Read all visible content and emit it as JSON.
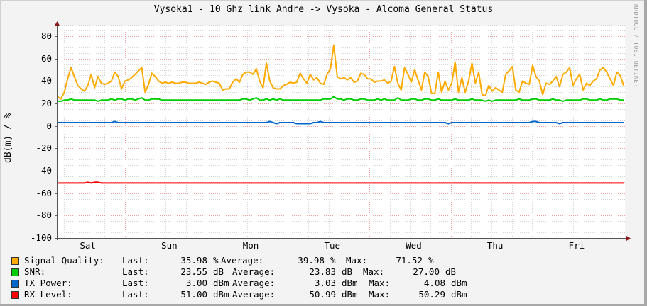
{
  "title": "Vysoka1 - 10 Ghz link Andre -> Vysoka - Alcoma General Status",
  "watermark": "RRDTOOL / TOBI OETIKER",
  "yaxis_title": "dB(m) / %",
  "chart_data": {
    "type": "line",
    "title": "Vysoka1 - 10 Ghz link Andre -> Vysoka - Alcoma General Status",
    "xlabel": "",
    "ylabel": "dB(m) / %",
    "ylim": [
      -100,
      90
    ],
    "yticks": [
      80,
      60,
      40,
      20,
      0,
      -20,
      -40,
      -60,
      -80,
      -100
    ],
    "ytick_labels": [
      "80",
      "60",
      "40",
      "20",
      "0",
      "-20",
      "-40",
      "-60",
      "-80",
      "-100"
    ],
    "xtick_labels": [
      "Sat",
      "Sun",
      "Mon",
      "Tue",
      "Wed",
      "Thu",
      "Fri"
    ],
    "grid": true,
    "legend_position": "bottom",
    "x": [
      0,
      1,
      2,
      3,
      4,
      5,
      6,
      7,
      8,
      9,
      10,
      11,
      12,
      13,
      14,
      15,
      16,
      17,
      18,
      19,
      20,
      21,
      22,
      23,
      24,
      25,
      26,
      27,
      28,
      29,
      30,
      31,
      32,
      33,
      34,
      35,
      36,
      37,
      38,
      39,
      40,
      41,
      42,
      43,
      44,
      45,
      46,
      47,
      48,
      49,
      50,
      51,
      52,
      53,
      54,
      55,
      56,
      57,
      58,
      59,
      60,
      61,
      62,
      63,
      64,
      65,
      66,
      67,
      68,
      69,
      70,
      71,
      72,
      73,
      74,
      75,
      76,
      77,
      78,
      79,
      80,
      81,
      82,
      83,
      84,
      85,
      86,
      87,
      88,
      89,
      90,
      91,
      92,
      93,
      94,
      95,
      96,
      97,
      98,
      99,
      100,
      101,
      102,
      103,
      104,
      105,
      106,
      107,
      108,
      109,
      110,
      111,
      112,
      113,
      114,
      115,
      116,
      117,
      118,
      119,
      120,
      121,
      122,
      123,
      124,
      125,
      126,
      127,
      128,
      129,
      130,
      131,
      132,
      133,
      134,
      135,
      136,
      137,
      138,
      139,
      140,
      141,
      142,
      143,
      144,
      145,
      146,
      147,
      148,
      149,
      150,
      151,
      152,
      153,
      154,
      155,
      156,
      157,
      158,
      159,
      160,
      161,
      162,
      163,
      164,
      165,
      166,
      167,
      168
    ],
    "series": [
      {
        "name": "Signal Quality",
        "color": "#ffaa00",
        "unit": "%",
        "last": "35.98",
        "average": "39.98",
        "max": "71.52",
        "values": [
          26,
          24,
          30,
          42,
          52,
          44,
          36,
          33,
          31,
          36,
          46,
          34,
          44,
          38,
          37,
          38,
          40,
          48,
          44,
          33,
          40,
          41,
          43,
          46,
          49,
          52,
          30,
          37,
          47,
          44,
          40,
          38,
          39,
          38,
          39,
          38,
          38,
          39,
          39,
          38,
          38,
          38,
          39,
          38,
          37,
          39,
          40,
          39,
          38,
          32,
          33,
          33,
          39,
          42,
          39,
          46,
          48,
          48,
          46,
          51,
          40,
          34,
          56,
          40,
          34,
          33,
          33,
          36,
          37,
          39,
          38,
          39,
          47,
          42,
          38,
          46,
          41,
          43,
          38,
          37,
          46,
          51,
          72,
          44,
          42,
          43,
          41,
          43,
          39,
          40,
          47,
          46,
          42,
          42,
          39,
          40,
          40,
          41,
          38,
          40,
          53,
          38,
          32,
          52,
          46,
          39,
          50,
          41,
          32,
          48,
          44,
          29,
          29,
          48,
          30,
          40,
          32,
          38,
          57,
          30,
          43,
          30,
          40,
          56,
          38,
          48,
          28,
          27,
          36,
          31,
          34,
          32,
          30,
          46,
          49,
          53,
          32,
          30,
          40,
          38,
          37,
          54,
          44,
          40,
          28,
          38,
          37,
          40,
          44,
          35,
          46,
          48,
          52,
          36,
          42,
          46,
          32,
          38,
          36,
          40,
          42,
          50,
          52,
          48,
          42,
          36,
          48,
          45,
          36
        ]
      },
      {
        "name": "SNR",
        "color": "#00cc00",
        "unit": "dB",
        "last": "23.55",
        "average": "23.83",
        "max": "27.00",
        "values": [
          22,
          22,
          23,
          23,
          24,
          23,
          23,
          23,
          23,
          23,
          23,
          23,
          22,
          23,
          23,
          23,
          24,
          23,
          24,
          24,
          23,
          24,
          24,
          23,
          24,
          25,
          23,
          23,
          24,
          24,
          24,
          23,
          23,
          23,
          23,
          23,
          23,
          23,
          23,
          23,
          23,
          23,
          23,
          23,
          23,
          23,
          23,
          23,
          23,
          23,
          23,
          23,
          23,
          23,
          23,
          24,
          24,
          23,
          24,
          25,
          23,
          23,
          24,
          23,
          24,
          23,
          24,
          23,
          23,
          23,
          23,
          23,
          23,
          23,
          23,
          23,
          23,
          23,
          23,
          24,
          24,
          24,
          26,
          24,
          24,
          23,
          24,
          24,
          23,
          23,
          24,
          24,
          23,
          23,
          23,
          24,
          23,
          24,
          23,
          23,
          23,
          25,
          23,
          23,
          23,
          24,
          24,
          23,
          23,
          24,
          24,
          23,
          23,
          24,
          23,
          23,
          23,
          23,
          24,
          23,
          23,
          23,
          23,
          24,
          23,
          23,
          23,
          22,
          23,
          22,
          23,
          23,
          23,
          23,
          23,
          23,
          23,
          24,
          23,
          23,
          23,
          24,
          24,
          23,
          23,
          23,
          23,
          24,
          23,
          23,
          22,
          23,
          23,
          23,
          23,
          23,
          24,
          24,
          23,
          23,
          23,
          24,
          23,
          23,
          24,
          24,
          24,
          23,
          23
        ]
      },
      {
        "name": "TX Power",
        "color": "#0066cc",
        "unit": "dBm",
        "last": "3.00",
        "average": "3.03",
        "max": "4.08",
        "values": [
          3,
          3,
          3,
          3,
          3,
          3,
          3,
          3,
          3,
          3,
          3,
          3,
          3,
          3,
          3,
          3,
          3,
          4,
          3,
          3,
          3,
          3,
          3,
          3,
          3,
          3,
          3,
          3,
          3,
          3,
          3,
          3,
          3,
          3,
          3,
          3,
          3,
          3,
          3,
          3,
          3,
          3,
          3,
          3,
          3,
          3,
          3,
          3,
          3,
          3,
          3,
          3,
          3,
          3,
          3,
          3,
          3,
          3,
          3,
          3,
          3,
          3,
          3,
          4,
          3,
          2,
          3,
          3,
          3,
          3,
          3,
          2,
          2,
          2,
          2,
          2,
          3,
          3,
          4,
          3,
          3,
          3,
          3,
          3,
          3,
          3,
          3,
          3,
          3,
          3,
          3,
          3,
          3,
          3,
          3,
          3,
          3,
          3,
          3,
          3,
          3,
          3,
          3,
          3,
          3,
          3,
          3,
          3,
          3,
          3,
          3,
          3,
          3,
          3,
          3,
          3,
          2,
          3,
          3,
          3,
          3,
          3,
          3,
          3,
          3,
          3,
          3,
          3,
          3,
          3,
          3,
          3,
          3,
          3,
          3,
          3,
          3,
          3,
          3,
          3,
          3,
          4,
          4,
          3,
          3,
          3,
          3,
          3,
          3,
          2,
          3,
          3,
          3,
          3,
          3,
          3,
          3,
          3,
          3,
          3,
          3,
          3,
          3,
          3,
          3,
          3,
          3,
          3,
          3
        ]
      },
      {
        "name": "RX Level",
        "color": "#ff0000",
        "unit": "dBm",
        "last": "-51.00",
        "average": "-50.99",
        "max": "-50.29",
        "values": [
          -51,
          -51,
          -51,
          -51,
          -51,
          -51,
          -51,
          -51,
          -51,
          -50.3,
          -51,
          -50.3,
          -50.3,
          -51,
          -51,
          -51,
          -51,
          -51,
          -51,
          -51,
          -51,
          -51,
          -51,
          -51,
          -51,
          -51,
          -51,
          -51,
          -51,
          -51,
          -51,
          -51,
          -51,
          -51,
          -51,
          -51,
          -51,
          -51,
          -51,
          -51,
          -51,
          -51,
          -51,
          -51,
          -51,
          -51,
          -51,
          -51,
          -51,
          -51,
          -51,
          -51,
          -51,
          -51,
          -51,
          -51,
          -51,
          -51,
          -51,
          -51,
          -51,
          -51,
          -51,
          -51,
          -51,
          -51,
          -51,
          -51,
          -51,
          -51,
          -51,
          -51,
          -51,
          -51,
          -51,
          -51,
          -51,
          -51,
          -51,
          -51,
          -51,
          -51,
          -51,
          -51,
          -51,
          -51,
          -51,
          -51,
          -51,
          -51,
          -51,
          -51,
          -51,
          -51,
          -51,
          -51,
          -51,
          -51,
          -51,
          -51,
          -51,
          -51,
          -51,
          -51,
          -51,
          -51,
          -51,
          -51,
          -51,
          -51,
          -51,
          -51,
          -51,
          -51,
          -51,
          -51,
          -51,
          -51,
          -51,
          -51,
          -51,
          -51,
          -51,
          -51,
          -51,
          -51,
          -51,
          -51,
          -51,
          -51,
          -51,
          -51,
          -51,
          -51,
          -51,
          -51,
          -51,
          -51,
          -51,
          -51,
          -51,
          -51,
          -51,
          -51,
          -51,
          -51,
          -51,
          -51,
          -51,
          -51,
          -51,
          -51,
          -51,
          -51,
          -51,
          -51,
          -51,
          -51,
          -51,
          -51,
          -51,
          -51,
          -51,
          -51,
          -51,
          -51,
          -51,
          -51,
          -51
        ]
      }
    ]
  },
  "legend": {
    "last_label": "Last:",
    "average_label": "Average:",
    "max_label": "Max:",
    "items": [
      {
        "name": "Signal Quality:",
        "color": "#ffaa00",
        "last": "35.98",
        "last_unit": "%",
        "average": "39.98",
        "average_unit": "%",
        "max": "71.52",
        "max_unit": "%"
      },
      {
        "name": "SNR:",
        "color": "#00cc00",
        "last": "23.55",
        "last_unit": "dB",
        "average": "23.83",
        "average_unit": "dB",
        "max": "27.00",
        "max_unit": "dB"
      },
      {
        "name": "TX Power:",
        "color": "#0066cc",
        "last": "3.00",
        "last_unit": "dBm",
        "average": "3.03",
        "average_unit": "dBm",
        "max": "4.08",
        "max_unit": "dBm"
      },
      {
        "name": "RX Level:",
        "color": "#ff0000",
        "last": "-51.00",
        "last_unit": "dBm",
        "average": "-50.99",
        "average_unit": "dBm",
        "max": "-50.29",
        "max_unit": "dBm"
      }
    ]
  }
}
